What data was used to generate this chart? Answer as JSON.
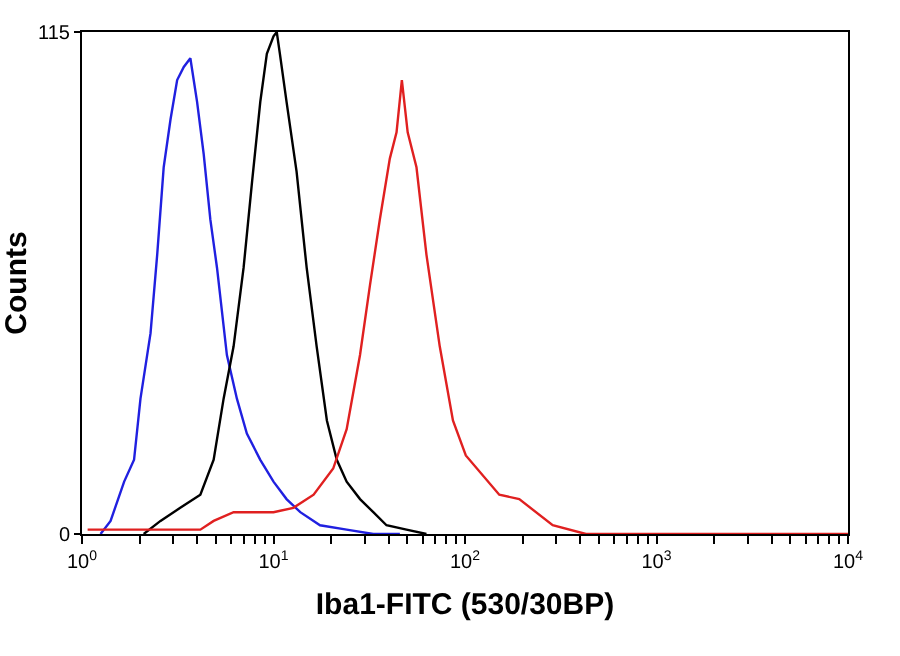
{
  "chart_data": {
    "type": "line",
    "xlabel": "Iba1-FITC (530/30BP)",
    "ylabel": "Counts",
    "log": "x",
    "grid": false,
    "marker": "none",
    "line_style": "solid",
    "xlim": [
      1,
      10000
    ],
    "ylim": [
      0,
      115
    ],
    "xticks": [
      {
        "value": 1,
        "label": "10$^{0}$"
      },
      {
        "value": 2,
        "label": null
      },
      {
        "value": 3,
        "label": null
      },
      {
        "value": 4,
        "label": null
      },
      {
        "value": 5,
        "label": null
      },
      {
        "value": 6,
        "label": null
      },
      {
        "value": 7,
        "label": null
      },
      {
        "value": 8,
        "label": null
      },
      {
        "value": 9,
        "label": null
      },
      {
        "value": 10,
        "label": "10$^{1}$"
      },
      {
        "value": 20,
        "label": null
      },
      {
        "value": 30,
        "label": null
      },
      {
        "value": 40,
        "label": null
      },
      {
        "value": 50,
        "label": null
      },
      {
        "value": 60,
        "label": null
      },
      {
        "value": 70,
        "label": null
      },
      {
        "value": 80,
        "label": null
      },
      {
        "value": 90,
        "label": null
      },
      {
        "value": 100,
        "label": "10$^{2}$"
      },
      {
        "value": 200,
        "label": null
      },
      {
        "value": 300,
        "label": null
      },
      {
        "value": 400,
        "label": null
      },
      {
        "value": 500,
        "label": null
      },
      {
        "value": 600,
        "label": null
      },
      {
        "value": 700,
        "label": null
      },
      {
        "value": 800,
        "label": null
      },
      {
        "value": 900,
        "label": null
      },
      {
        "value": 1000,
        "label": "10$^{3}$"
      },
      {
        "value": 2000,
        "label": null
      },
      {
        "value": 3000,
        "label": null
      },
      {
        "value": 4000,
        "label": null
      },
      {
        "value": 5000,
        "label": null
      },
      {
        "value": 6000,
        "label": null
      },
      {
        "value": 7000,
        "label": null
      },
      {
        "value": 8000,
        "label": null
      },
      {
        "value": 9000,
        "label": null
      },
      {
        "value": 10000,
        "label": "10$^{4}$"
      }
    ],
    "yticks": [
      0,
      115
    ],
    "series": [
      {
        "color": "#2020e0",
        "x": [
          1.25,
          1.41,
          1.66,
          1.87,
          2.02,
          2.28,
          2.47,
          2.67,
          2.9,
          3.14,
          3.4,
          3.68,
          3.99,
          4.32,
          4.68,
          5.07,
          5.71,
          6.44,
          7.26,
          8.53,
          10,
          11.7,
          13.8,
          17.5,
          24.1,
          33.2,
          45.7
        ],
        "values": [
          0,
          3,
          12,
          17,
          31,
          46,
          64,
          84,
          95,
          104,
          107,
          109,
          99,
          87,
          72,
          61,
          41,
          31,
          23,
          17,
          12,
          8,
          5,
          2,
          1,
          0,
          0
        ]
      },
      {
        "color": "#000000",
        "x": [
          2.1,
          2.57,
          3.26,
          4.15,
          4.87,
          5.49,
          6.19,
          6.98,
          7.74,
          8.53,
          9.23,
          10,
          10.4,
          10.8,
          11.7,
          13.2,
          14.9,
          16.8,
          19,
          21.4,
          24.1,
          28.3,
          33.2,
          38.9,
          49.5,
          62.9
        ],
        "values": [
          0,
          3,
          6,
          9,
          17,
          31,
          43,
          61,
          81,
          99,
          110,
          114,
          115,
          110,
          99,
          83,
          61,
          43,
          26,
          17,
          12,
          8,
          5,
          2,
          1,
          0
        ]
      },
      {
        "color": "#e02020",
        "x": [
          1.07,
          1.87,
          4.15,
          4.87,
          6.19,
          7.87,
          10,
          12.7,
          16.2,
          20.5,
          24.1,
          28.3,
          31.9,
          35.9,
          40.5,
          43.9,
          46.8,
          50.2,
          55.8,
          62.9,
          73.8,
          86.5,
          101,
          151,
          192,
          287,
          428,
          10000
        ],
        "values": [
          1,
          1,
          1,
          3,
          5,
          5,
          5,
          6,
          9,
          15,
          24,
          41,
          57,
          72,
          86,
          92,
          104,
          92,
          84,
          64,
          43,
          26,
          18,
          9,
          8,
          2,
          0,
          0
        ]
      }
    ]
  }
}
